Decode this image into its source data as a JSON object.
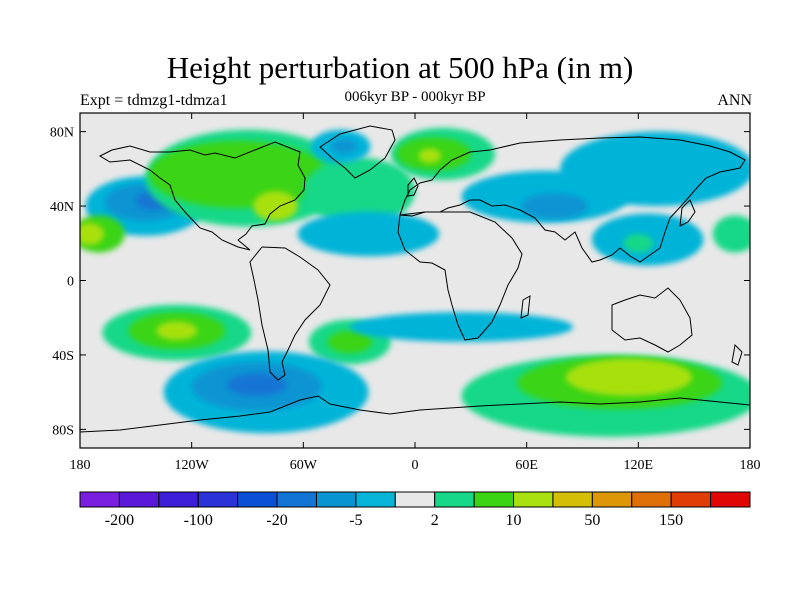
{
  "header": {
    "title": "Height perturbation at 500 hPa (in m)",
    "subtitle": "006kyr BP - 000kyr BP",
    "left_label": "Expt = tdmzg1-tdmza1",
    "right_label": "ANN"
  },
  "map": {
    "projection": "cylindrical-equidistant",
    "lon_range": [
      -180,
      180
    ],
    "lat_range": [
      -90,
      90
    ],
    "background_color": "#e8e8e8",
    "lon_ticks": [
      {
        "value": -180,
        "label": "180"
      },
      {
        "value": -120,
        "label": "120W"
      },
      {
        "value": -60,
        "label": "60W"
      },
      {
        "value": 0,
        "label": "0"
      },
      {
        "value": 60,
        "label": "60E"
      },
      {
        "value": 120,
        "label": "120E"
      },
      {
        "value": 180,
        "label": "180"
      }
    ],
    "lat_ticks": [
      {
        "value": 80,
        "label": "80N"
      },
      {
        "value": 40,
        "label": "40N"
      },
      {
        "value": 0,
        "label": "0"
      },
      {
        "value": -40,
        "label": "40S"
      },
      {
        "value": -80,
        "label": "80S"
      }
    ]
  },
  "colorbar": {
    "colors": [
      "#7a1ee0",
      "#5a18d8",
      "#3c1ed6",
      "#2a32d8",
      "#0a50d6",
      "#1274d4",
      "#0894d2",
      "#06b4d8",
      "#e8e8e8",
      "#16d888",
      "#3ad414",
      "#a8e010",
      "#d4be06",
      "#dc9606",
      "#de6e06",
      "#e03c06",
      "#e00606"
    ],
    "labels": [
      {
        "after_box": 1,
        "text": "-200"
      },
      {
        "after_box": 3,
        "text": "-100"
      },
      {
        "after_box": 5,
        "text": "-20"
      },
      {
        "after_box": 7,
        "text": "-5"
      },
      {
        "after_box": 9,
        "text": "2"
      },
      {
        "after_box": 11,
        "text": "10"
      },
      {
        "after_box": 13,
        "text": "50"
      },
      {
        "after_box": 15,
        "text": "150"
      }
    ]
  },
  "field_regions": [
    {
      "lon": -145,
      "lat": 40,
      "rx": 32,
      "ry": 16,
      "level": 7
    },
    {
      "lon": -145,
      "lat": 42,
      "rx": 22,
      "ry": 10,
      "level": 6
    },
    {
      "lon": -140,
      "lat": 43,
      "rx": 10,
      "ry": 5,
      "level": 5
    },
    {
      "lon": -170,
      "lat": 25,
      "rx": 14,
      "ry": 10,
      "level": 10
    },
    {
      "lon": -175,
      "lat": 25,
      "rx": 8,
      "ry": 6,
      "level": 11
    },
    {
      "lon": -90,
      "lat": 55,
      "rx": 55,
      "ry": 26,
      "level": 9
    },
    {
      "lon": -95,
      "lat": 57,
      "rx": 48,
      "ry": 18,
      "level": 10
    },
    {
      "lon": -75,
      "lat": 40,
      "rx": 12,
      "ry": 8,
      "level": 11
    },
    {
      "lon": -30,
      "lat": 48,
      "rx": 30,
      "ry": 18,
      "level": 9
    },
    {
      "lon": -25,
      "lat": 25,
      "rx": 38,
      "ry": 12,
      "level": 7
    },
    {
      "lon": -40,
      "lat": 72,
      "rx": 16,
      "ry": 9,
      "level": 7
    },
    {
      "lon": -38,
      "lat": 72,
      "rx": 7,
      "ry": 4,
      "level": 6
    },
    {
      "lon": 15,
      "lat": 68,
      "rx": 28,
      "ry": 14,
      "level": 9
    },
    {
      "lon": 10,
      "lat": 68,
      "rx": 20,
      "ry": 9,
      "level": 10
    },
    {
      "lon": 8,
      "lat": 67,
      "rx": 6,
      "ry": 4,
      "level": 11
    },
    {
      "lon": 70,
      "lat": 45,
      "rx": 45,
      "ry": 14,
      "level": 7
    },
    {
      "lon": 75,
      "lat": 40,
      "rx": 18,
      "ry": 7,
      "level": 6
    },
    {
      "lon": 130,
      "lat": 60,
      "rx": 52,
      "ry": 20,
      "level": 7
    },
    {
      "lon": 125,
      "lat": 22,
      "rx": 30,
      "ry": 14,
      "level": 7
    },
    {
      "lon": 120,
      "lat": 20,
      "rx": 8,
      "ry": 5,
      "level": 9
    },
    {
      "lon": 172,
      "lat": 25,
      "rx": 12,
      "ry": 10,
      "level": 9
    },
    {
      "lon": -128,
      "lat": -28,
      "rx": 40,
      "ry": 15,
      "level": 9
    },
    {
      "lon": -128,
      "lat": -27,
      "rx": 26,
      "ry": 10,
      "level": 10
    },
    {
      "lon": -128,
      "lat": -27,
      "rx": 11,
      "ry": 5,
      "level": 11
    },
    {
      "lon": -35,
      "lat": -33,
      "rx": 22,
      "ry": 12,
      "level": 9
    },
    {
      "lon": -35,
      "lat": -33,
      "rx": 12,
      "ry": 6,
      "level": 10
    },
    {
      "lon": 25,
      "lat": -25,
      "rx": 60,
      "ry": 8,
      "level": 7
    },
    {
      "lon": -80,
      "lat": -60,
      "rx": 55,
      "ry": 22,
      "level": 7
    },
    {
      "lon": -85,
      "lat": -57,
      "rx": 35,
      "ry": 13,
      "level": 6
    },
    {
      "lon": -85,
      "lat": -56,
      "rx": 16,
      "ry": 6,
      "level": 5
    },
    {
      "lon": 105,
      "lat": -62,
      "rx": 80,
      "ry": 22,
      "level": 9
    },
    {
      "lon": 110,
      "lat": -55,
      "rx": 55,
      "ry": 14,
      "level": 10
    },
    {
      "lon": 115,
      "lat": -52,
      "rx": 34,
      "ry": 10,
      "level": 11
    }
  ]
}
